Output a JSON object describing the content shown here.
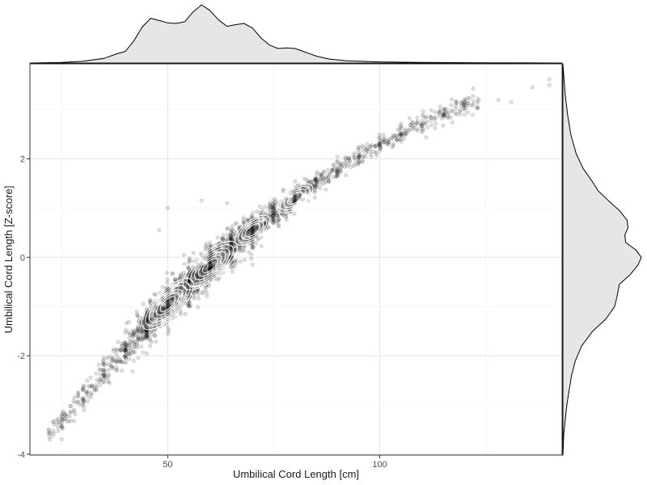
{
  "chart_data": {
    "type": "scatter",
    "title": "",
    "xlabel": "Umbilical Cord Length [cm]",
    "ylabel": "Umbilical Cord Length [Z-score]",
    "xlim": [
      17.5,
      143
    ],
    "ylim": [
      -4.02,
      3.93
    ],
    "x_ticks": [
      50,
      100
    ],
    "y_ticks": [
      -4,
      -2,
      0,
      2
    ],
    "x_tick_labels": [
      "50",
      "100"
    ],
    "y_tick_labels": [
      "-4",
      "-2",
      "0",
      "2"
    ],
    "grid": true,
    "theme": "bw",
    "point_color": "#000000",
    "point_alpha": 0.12,
    "contour_color": "#ffffff",
    "density_fill": "#e6e6e6",
    "trend": [
      {
        "x": 22,
        "y": -3.55
      },
      {
        "x": 25,
        "y": -3.3
      },
      {
        "x": 30,
        "y": -2.85
      },
      {
        "x": 35,
        "y": -2.35
      },
      {
        "x": 40,
        "y": -1.85
      },
      {
        "x": 45,
        "y": -1.4
      },
      {
        "x": 50,
        "y": -0.95
      },
      {
        "x": 55,
        "y": -0.55
      },
      {
        "x": 60,
        "y": -0.17
      },
      {
        "x": 65,
        "y": 0.2
      },
      {
        "x": 70,
        "y": 0.55
      },
      {
        "x": 75,
        "y": 0.88
      },
      {
        "x": 80,
        "y": 1.2
      },
      {
        "x": 85,
        "y": 1.5
      },
      {
        "x": 90,
        "y": 1.78
      },
      {
        "x": 95,
        "y": 2.04
      },
      {
        "x": 100,
        "y": 2.28
      },
      {
        "x": 105,
        "y": 2.5
      },
      {
        "x": 110,
        "y": 2.7
      },
      {
        "x": 115,
        "y": 2.88
      },
      {
        "x": 120,
        "y": 3.05
      },
      {
        "x": 125,
        "y": 3.2
      },
      {
        "x": 130,
        "y": 3.33
      },
      {
        "x": 135,
        "y": 3.45
      },
      {
        "x": 140,
        "y": 3.56
      }
    ],
    "outliers": [
      {
        "x": 22,
        "y": -3.5
      },
      {
        "x": 25,
        "y": -3.7
      },
      {
        "x": 25,
        "y": -3.3
      },
      {
        "x": 48,
        "y": 0.55
      },
      {
        "x": 50,
        "y": 1.0
      },
      {
        "x": 58,
        "y": 1.15
      },
      {
        "x": 64,
        "y": 1.1
      },
      {
        "x": 70,
        "y": -0.15
      },
      {
        "x": 128,
        "y": 3.2
      },
      {
        "x": 131,
        "y": 3.15
      },
      {
        "x": 136,
        "y": 3.45
      },
      {
        "x": 140,
        "y": 3.62
      },
      {
        "x": 140,
        "y": 3.5
      },
      {
        "x": 118,
        "y": 3.08
      }
    ],
    "modes": [
      {
        "x": 50,
        "y": -0.95
      },
      {
        "x": 60,
        "y": -0.17
      },
      {
        "x": 70,
        "y": 0.55
      },
      {
        "x": 80,
        "y": 1.2
      }
    ],
    "x_density": [
      {
        "x": 17.5,
        "d": 0.0
      },
      {
        "x": 25,
        "d": 0.01
      },
      {
        "x": 30,
        "d": 0.03
      },
      {
        "x": 35,
        "d": 0.08
      },
      {
        "x": 38,
        "d": 0.16
      },
      {
        "x": 40,
        "d": 0.2
      },
      {
        "x": 42,
        "d": 0.38
      },
      {
        "x": 44,
        "d": 0.62
      },
      {
        "x": 46,
        "d": 0.77
      },
      {
        "x": 48,
        "d": 0.73
      },
      {
        "x": 50,
        "d": 0.69
      },
      {
        "x": 52,
        "d": 0.68
      },
      {
        "x": 54,
        "d": 0.71
      },
      {
        "x": 56,
        "d": 0.88
      },
      {
        "x": 58,
        "d": 1.0
      },
      {
        "x": 60,
        "d": 0.9
      },
      {
        "x": 62,
        "d": 0.74
      },
      {
        "x": 64,
        "d": 0.63
      },
      {
        "x": 66,
        "d": 0.66
      },
      {
        "x": 68,
        "d": 0.68
      },
      {
        "x": 70,
        "d": 0.6
      },
      {
        "x": 72,
        "d": 0.43
      },
      {
        "x": 74,
        "d": 0.31
      },
      {
        "x": 76,
        "d": 0.25
      },
      {
        "x": 78,
        "d": 0.26
      },
      {
        "x": 80,
        "d": 0.25
      },
      {
        "x": 82,
        "d": 0.2
      },
      {
        "x": 85,
        "d": 0.12
      },
      {
        "x": 88,
        "d": 0.07
      },
      {
        "x": 92,
        "d": 0.04
      },
      {
        "x": 100,
        "d": 0.02
      },
      {
        "x": 110,
        "d": 0.01
      },
      {
        "x": 125,
        "d": 0.004
      },
      {
        "x": 143,
        "d": 0.0
      }
    ],
    "y_density": [
      {
        "y": -4.02,
        "d": 0.0
      },
      {
        "y": -3.6,
        "d": 0.01
      },
      {
        "y": -3.3,
        "d": 0.03
      },
      {
        "y": -3.0,
        "d": 0.05
      },
      {
        "y": -2.7,
        "d": 0.08
      },
      {
        "y": -2.4,
        "d": 0.11
      },
      {
        "y": -2.1,
        "d": 0.16
      },
      {
        "y": -1.8,
        "d": 0.24
      },
      {
        "y": -1.5,
        "d": 0.38
      },
      {
        "y": -1.25,
        "d": 0.55
      },
      {
        "y": -1.0,
        "d": 0.66
      },
      {
        "y": -0.8,
        "d": 0.69
      },
      {
        "y": -0.55,
        "d": 0.72
      },
      {
        "y": -0.35,
        "d": 0.86
      },
      {
        "y": -0.15,
        "d": 0.96
      },
      {
        "y": 0.0,
        "d": 1.0
      },
      {
        "y": 0.15,
        "d": 0.93
      },
      {
        "y": 0.3,
        "d": 0.8
      },
      {
        "y": 0.45,
        "d": 0.79
      },
      {
        "y": 0.6,
        "d": 0.83
      },
      {
        "y": 0.75,
        "d": 0.82
      },
      {
        "y": 0.95,
        "d": 0.72
      },
      {
        "y": 1.15,
        "d": 0.58
      },
      {
        "y": 1.35,
        "d": 0.45
      },
      {
        "y": 1.55,
        "d": 0.37
      },
      {
        "y": 1.8,
        "d": 0.26
      },
      {
        "y": 2.1,
        "d": 0.17
      },
      {
        "y": 2.5,
        "d": 0.1
      },
      {
        "y": 2.9,
        "d": 0.06
      },
      {
        "y": 3.3,
        "d": 0.03
      },
      {
        "y": 3.93,
        "d": 0.0
      }
    ]
  }
}
